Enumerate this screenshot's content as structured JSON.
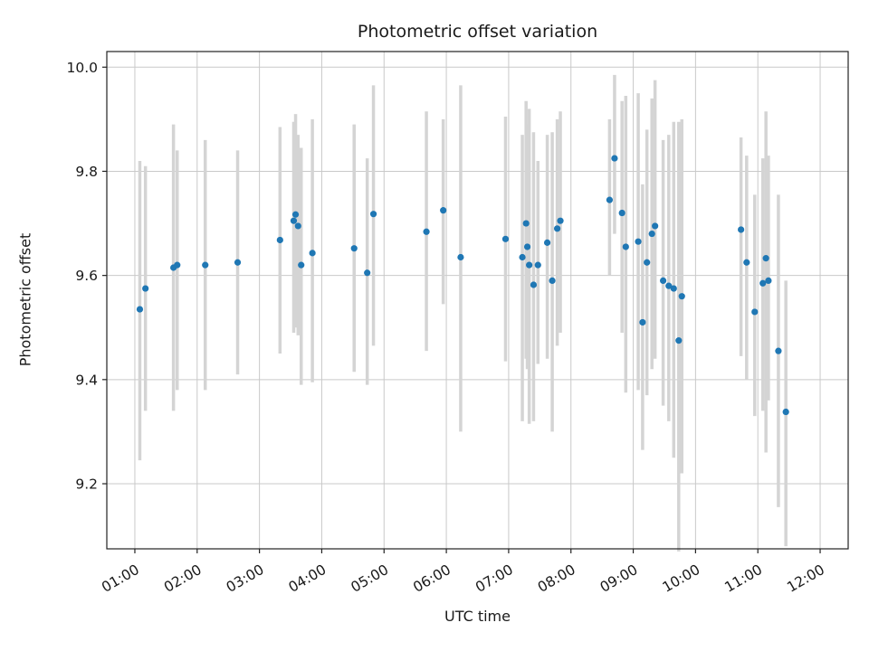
{
  "chart_data": {
    "type": "scatter",
    "title": "Photometric offset variation",
    "xlabel": "UTC time",
    "ylabel": "Photometric offset",
    "grid": true,
    "legend": "none",
    "x_tick_hours": [
      1,
      2,
      3,
      4,
      5,
      6,
      7,
      8,
      9,
      10,
      11,
      12
    ],
    "x_tick_labels": [
      "01:00",
      "02:00",
      "03:00",
      "04:00",
      "05:00",
      "06:00",
      "07:00",
      "08:00",
      "09:00",
      "10:00",
      "11:00",
      "12:00"
    ],
    "y_ticks": [
      9.2,
      9.4,
      9.6,
      9.8,
      10.0
    ],
    "y_tick_labels": [
      "9.2",
      "9.4",
      "9.6",
      "9.8",
      "10.0"
    ],
    "x_range_hours": [
      0.55,
      12.45
    ],
    "y_range": [
      9.075,
      10.03
    ],
    "point_color": "#1f77b4",
    "errorbar_color": "#d4d4d4",
    "axis_color": "#222222",
    "grid_color": "#c9c9c9",
    "points_format": [
      "utc_hour",
      "offset",
      "err_low",
      "err_high"
    ],
    "points": [
      [
        1.08,
        9.535,
        9.245,
        9.82
      ],
      [
        1.17,
        9.575,
        9.34,
        9.81
      ],
      [
        1.62,
        9.615,
        9.34,
        9.89
      ],
      [
        1.68,
        9.62,
        9.38,
        9.84
      ],
      [
        2.13,
        9.62,
        9.38,
        9.86
      ],
      [
        2.65,
        9.625,
        9.41,
        9.84
      ],
      [
        3.33,
        9.668,
        9.45,
        9.885
      ],
      [
        3.55,
        9.705,
        9.49,
        9.895
      ],
      [
        3.58,
        9.717,
        9.5,
        9.91
      ],
      [
        3.62,
        9.695,
        9.485,
        9.87
      ],
      [
        3.67,
        9.62,
        9.39,
        9.845
      ],
      [
        3.85,
        9.643,
        9.395,
        9.9
      ],
      [
        4.52,
        9.652,
        9.415,
        9.89
      ],
      [
        4.73,
        9.605,
        9.39,
        9.825
      ],
      [
        4.83,
        9.718,
        9.465,
        9.965
      ],
      [
        5.68,
        9.684,
        9.455,
        9.915
      ],
      [
        5.95,
        9.725,
        9.545,
        9.9
      ],
      [
        6.23,
        9.635,
        9.3,
        9.965
      ],
      [
        6.95,
        9.67,
        9.435,
        9.905
      ],
      [
        7.22,
        9.635,
        9.32,
        9.87
      ],
      [
        7.28,
        9.7,
        9.44,
        9.935
      ],
      [
        7.3,
        9.655,
        9.42,
        9.89
      ],
      [
        7.33,
        9.62,
        9.315,
        9.92
      ],
      [
        7.4,
        9.582,
        9.32,
        9.875
      ],
      [
        7.47,
        9.62,
        9.43,
        9.82
      ],
      [
        7.62,
        9.663,
        9.44,
        9.87
      ],
      [
        7.7,
        9.59,
        9.3,
        9.875
      ],
      [
        7.78,
        9.69,
        9.465,
        9.9
      ],
      [
        7.83,
        9.705,
        9.49,
        9.915
      ],
      [
        8.62,
        9.745,
        9.6,
        9.9
      ],
      [
        8.7,
        9.825,
        9.68,
        9.985
      ],
      [
        8.82,
        9.72,
        9.49,
        9.935
      ],
      [
        8.88,
        9.655,
        9.375,
        9.945
      ],
      [
        9.08,
        9.665,
        9.38,
        9.95
      ],
      [
        9.15,
        9.51,
        9.265,
        9.775
      ],
      [
        9.22,
        9.625,
        9.37,
        9.88
      ],
      [
        9.3,
        9.68,
        9.42,
        9.94
      ],
      [
        9.35,
        9.695,
        9.44,
        9.975
      ],
      [
        9.48,
        9.59,
        9.35,
        9.86
      ],
      [
        9.57,
        9.58,
        9.32,
        9.87
      ],
      [
        9.65,
        9.575,
        9.25,
        9.895
      ],
      [
        9.73,
        9.475,
        9.07,
        9.895
      ],
      [
        9.78,
        9.56,
        9.22,
        9.9
      ],
      [
        10.73,
        9.688,
        9.445,
        9.865
      ],
      [
        10.82,
        9.625,
        9.4,
        9.83
      ],
      [
        10.95,
        9.53,
        9.33,
        9.755
      ],
      [
        11.08,
        9.585,
        9.34,
        9.825
      ],
      [
        11.13,
        9.633,
        9.26,
        9.915
      ],
      [
        11.17,
        9.59,
        9.36,
        9.83
      ],
      [
        11.33,
        9.455,
        9.155,
        9.755
      ],
      [
        11.45,
        9.338,
        9.08,
        9.59
      ]
    ]
  }
}
